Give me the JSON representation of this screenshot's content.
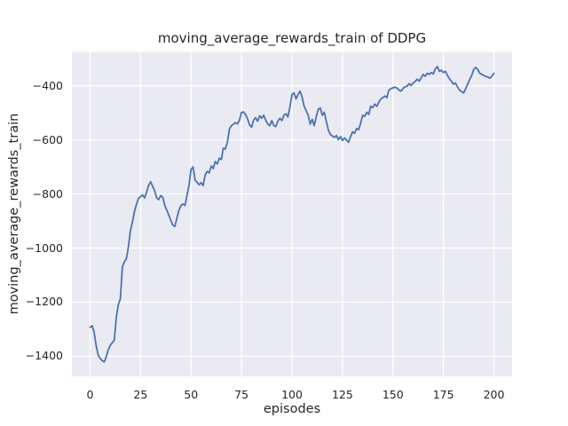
{
  "figure": {
    "title": "moving_average_rewards_train of DDPG",
    "xlabel": "episodes",
    "ylabel": "moving_average_rewards_train"
  },
  "colors": {
    "line": "#4C72B0",
    "plot_background": "#EAEAF2",
    "grid": "#FFFFFF",
    "figure_background": "#FFFFFF",
    "text": "#262626"
  },
  "chart_data": {
    "type": "line",
    "title": "moving_average_rewards_train of DDPG",
    "xlabel": "episodes",
    "ylabel": "moving_average_rewards_train",
    "x_ticks": [
      0,
      25,
      50,
      75,
      100,
      125,
      150,
      175,
      200
    ],
    "y_ticks": [
      -400,
      -600,
      -800,
      -1000,
      -1200,
      -1400
    ],
    "xlim": [
      -9,
      209
    ],
    "ylim": [
      -1474,
      -275
    ],
    "grid": true,
    "legend_position": "none",
    "series": [
      {
        "name": "moving_average_rewards_train",
        "x_start": 0,
        "x_step": 1,
        "values": [
          -1293,
          -1287,
          -1310,
          -1360,
          -1395,
          -1408,
          -1416,
          -1421,
          -1402,
          -1376,
          -1360,
          -1350,
          -1340,
          -1255,
          -1210,
          -1187,
          -1070,
          -1050,
          -1040,
          -995,
          -935,
          -903,
          -865,
          -838,
          -816,
          -810,
          -803,
          -815,
          -793,
          -768,
          -755,
          -772,
          -788,
          -815,
          -821,
          -806,
          -812,
          -843,
          -860,
          -878,
          -898,
          -916,
          -920,
          -890,
          -860,
          -843,
          -837,
          -843,
          -805,
          -768,
          -710,
          -700,
          -748,
          -757,
          -766,
          -758,
          -769,
          -730,
          -717,
          -722,
          -697,
          -706,
          -680,
          -689,
          -668,
          -673,
          -631,
          -634,
          -609,
          -560,
          -548,
          -542,
          -536,
          -541,
          -527,
          -499,
          -497,
          -507,
          -522,
          -545,
          -553,
          -527,
          -518,
          -531,
          -511,
          -520,
          -509,
          -528,
          -541,
          -548,
          -529,
          -547,
          -551,
          -531,
          -520,
          -529,
          -509,
          -504,
          -515,
          -478,
          -432,
          -427,
          -449,
          -432,
          -420,
          -442,
          -476,
          -492,
          -509,
          -542,
          -524,
          -548,
          -515,
          -487,
          -482,
          -509,
          -498,
          -532,
          -564,
          -580,
          -586,
          -591,
          -584,
          -599,
          -588,
          -602,
          -593,
          -601,
          -609,
          -588,
          -570,
          -576,
          -558,
          -563,
          -538,
          -509,
          -513,
          -498,
          -506,
          -476,
          -481,
          -468,
          -476,
          -461,
          -449,
          -444,
          -438,
          -444,
          -416,
          -411,
          -408,
          -405,
          -409,
          -416,
          -420,
          -410,
          -404,
          -402,
          -392,
          -399,
          -390,
          -384,
          -376,
          -383,
          -371,
          -358,
          -365,
          -354,
          -358,
          -351,
          -356,
          -338,
          -329,
          -347,
          -343,
          -351,
          -347,
          -362,
          -374,
          -384,
          -394,
          -390,
          -405,
          -416,
          -422,
          -427,
          -411,
          -394,
          -377,
          -362,
          -340,
          -332,
          -340,
          -354,
          -358,
          -362,
          -366,
          -368,
          -372,
          -365,
          -354
        ]
      }
    ]
  }
}
